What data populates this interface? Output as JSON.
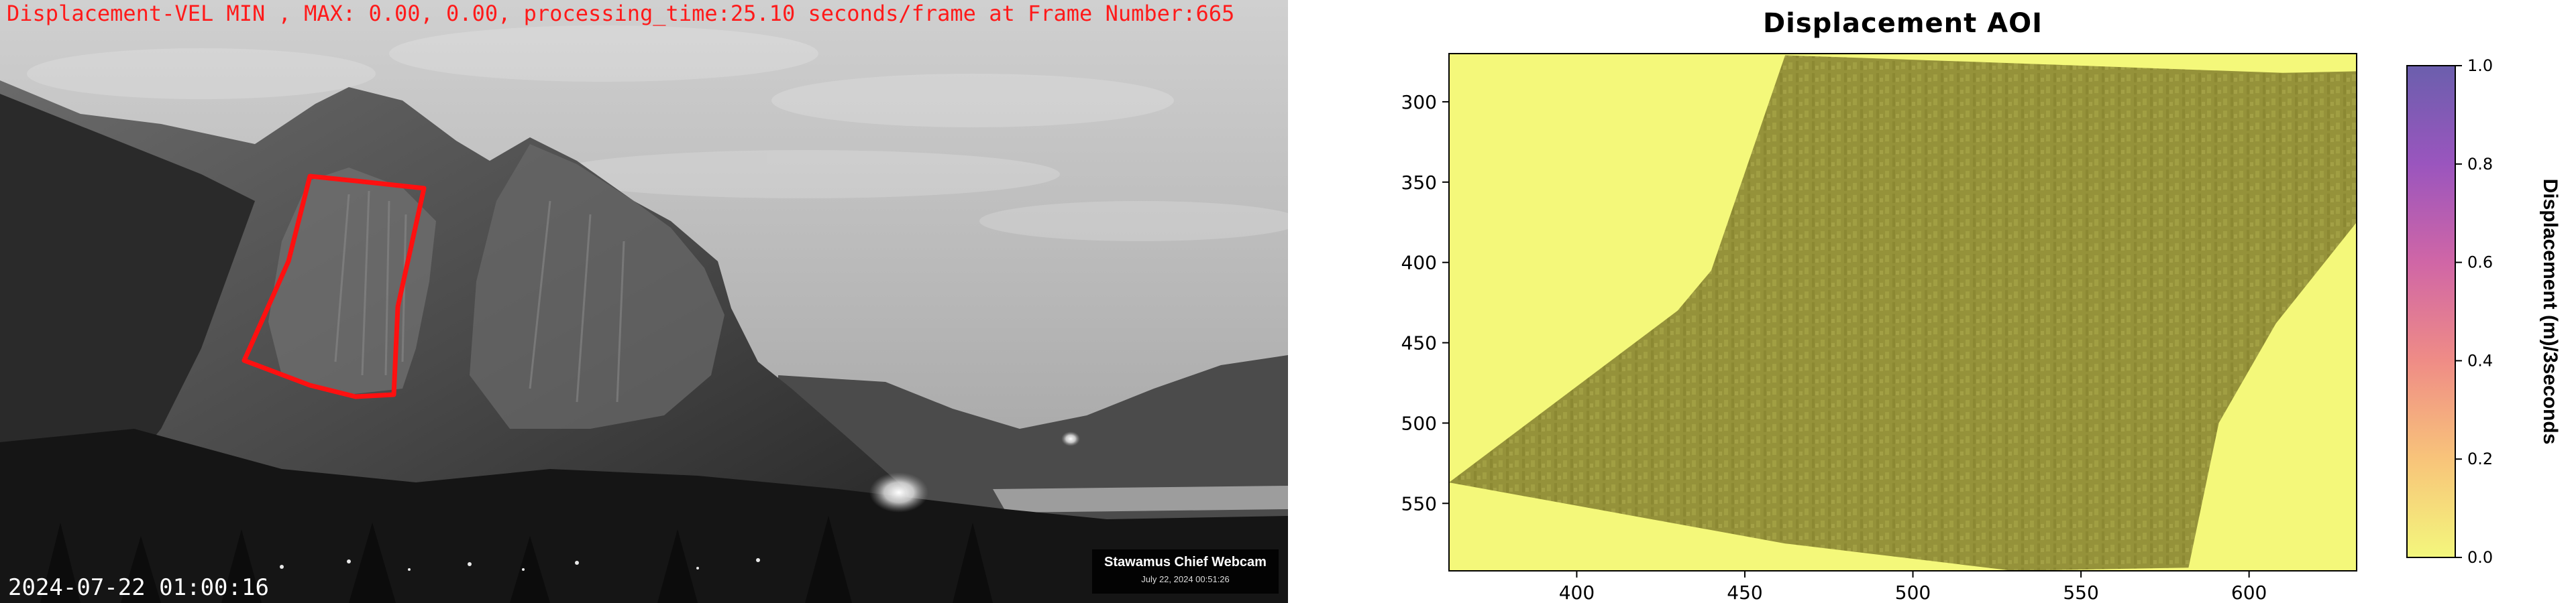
{
  "webcam": {
    "overlay_text": "Displacement-VEL MIN , MAX: 0.00, 0.00, processing_time:25.10 seconds/frame at Frame Number:665",
    "timestamp": "2024-07-22 01:00:16",
    "watermark_title": "Stawamus Chief Webcam",
    "watermark_date": "July 22, 2024 00:51:26",
    "aoi_outline_color": "#ff1010"
  },
  "chart_data": {
    "type": "heatmap",
    "title": "Displacement AOI",
    "xlabel": "",
    "ylabel": "",
    "xlim": [
      362,
      632
    ],
    "ylim": [
      592,
      270
    ],
    "y_inverted": true,
    "x_ticks": [
      400,
      450,
      500,
      550,
      600
    ],
    "y_ticks": [
      300,
      350,
      400,
      450,
      500,
      550
    ],
    "background_value": 0.0,
    "aoi_region_polygon": [
      [
        462,
        271
      ],
      [
        530,
        276
      ],
      [
        610,
        282
      ],
      [
        632,
        281
      ],
      [
        632,
        375
      ],
      [
        608,
        438
      ],
      [
        591,
        500
      ],
      [
        582,
        590
      ],
      [
        530,
        592
      ],
      [
        462,
        575
      ],
      [
        362,
        537
      ],
      [
        430,
        430
      ],
      [
        440,
        405
      ],
      [
        462,
        271
      ]
    ],
    "values_in_region": "approximately 0.00 throughout",
    "colorbar": {
      "label": "Displacement (m)/3seconds",
      "vmin": 0.0,
      "vmax": 1.0,
      "ticks": [
        0.0,
        0.2,
        0.4,
        0.6,
        0.8,
        1.0
      ],
      "tick_labels": [
        "0.0",
        "0.2",
        "0.4",
        "0.6",
        "0.8",
        "1.0"
      ],
      "placement": "right",
      "colors": [
        "#f3f77c",
        "#f8c47a",
        "#ef8c86",
        "#d066a6",
        "#9a55be",
        "#6b5fad"
      ]
    },
    "grid": false
  }
}
